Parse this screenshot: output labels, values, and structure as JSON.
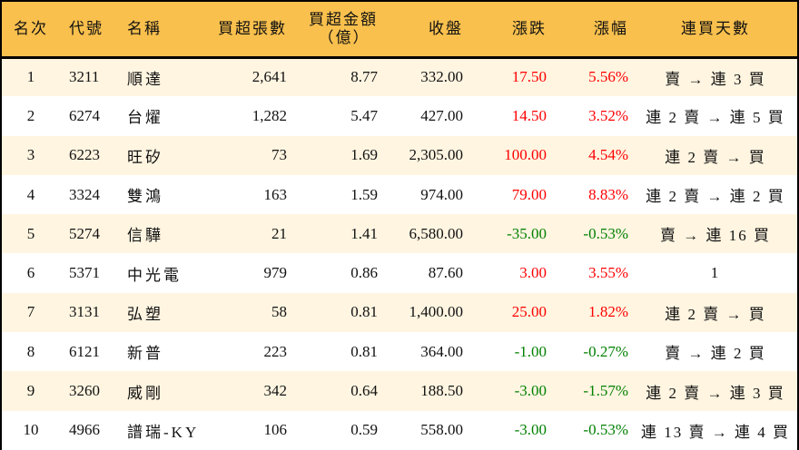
{
  "table": {
    "headers": {
      "rank": "名次",
      "code": "代號",
      "name": "名稱",
      "net_buy_lots": "買超張數",
      "net_buy_amount_line1": "買超金額",
      "net_buy_amount_line2": "（億）",
      "close": "收盤",
      "change": "漲跌",
      "change_pct": "漲幅",
      "streak": "連買天數"
    },
    "colors": {
      "header_bg": "#F9C04D",
      "row_odd_bg": "#FFF5E1",
      "row_even_bg": "#FFFFFF",
      "up": "#FF0000",
      "down": "#008000"
    },
    "rows": [
      {
        "rank": "1",
        "code": "3211",
        "name": "順達",
        "lots": "2,641",
        "amount": "8.77",
        "close": "332.00",
        "change": "17.50",
        "pct": "5.56%",
        "dir": "up",
        "streak": "賣 → 連 3 買"
      },
      {
        "rank": "2",
        "code": "6274",
        "name": "台燿",
        "lots": "1,282",
        "amount": "5.47",
        "close": "427.00",
        "change": "14.50",
        "pct": "3.52%",
        "dir": "up",
        "streak": "連 2 賣 → 連 5 買"
      },
      {
        "rank": "3",
        "code": "6223",
        "name": "旺矽",
        "lots": "73",
        "amount": "1.69",
        "close": "2,305.00",
        "change": "100.00",
        "pct": "4.54%",
        "dir": "up",
        "streak": "連 2 賣 → 買"
      },
      {
        "rank": "4",
        "code": "3324",
        "name": "雙鴻",
        "lots": "163",
        "amount": "1.59",
        "close": "974.00",
        "change": "79.00",
        "pct": "8.83%",
        "dir": "up",
        "streak": "連 2 賣 → 連 2 買"
      },
      {
        "rank": "5",
        "code": "5274",
        "name": "信驊",
        "lots": "21",
        "amount": "1.41",
        "close": "6,580.00",
        "change": "-35.00",
        "pct": "-0.53%",
        "dir": "down",
        "streak": "賣 → 連 16 買"
      },
      {
        "rank": "6",
        "code": "5371",
        "name": "中光電",
        "lots": "979",
        "amount": "0.86",
        "close": "87.60",
        "change": "3.00",
        "pct": "3.55%",
        "dir": "up",
        "streak": "1"
      },
      {
        "rank": "7",
        "code": "3131",
        "name": "弘塑",
        "lots": "58",
        "amount": "0.81",
        "close": "1,400.00",
        "change": "25.00",
        "pct": "1.82%",
        "dir": "up",
        "streak": "連 2 賣 → 買"
      },
      {
        "rank": "8",
        "code": "6121",
        "name": "新普",
        "lots": "223",
        "amount": "0.81",
        "close": "364.00",
        "change": "-1.00",
        "pct": "-0.27%",
        "dir": "down",
        "streak": "賣 → 連 2 買"
      },
      {
        "rank": "9",
        "code": "3260",
        "name": "威剛",
        "lots": "342",
        "amount": "0.64",
        "close": "188.50",
        "change": "-3.00",
        "pct": "-1.57%",
        "dir": "down",
        "streak": "連 2 賣 → 連 3 買"
      },
      {
        "rank": "10",
        "code": "4966",
        "name": "譜瑞-KY",
        "lots": "106",
        "amount": "0.59",
        "close": "558.00",
        "change": "-3.00",
        "pct": "-0.53%",
        "dir": "down",
        "streak": "連 13 賣 → 連 4 買"
      }
    ]
  }
}
